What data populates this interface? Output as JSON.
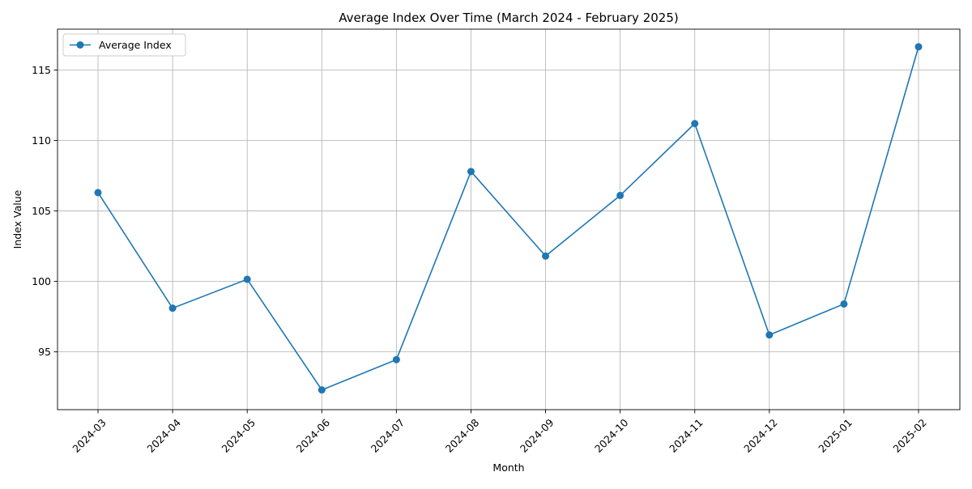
{
  "chart_data": {
    "type": "line",
    "title": "Average Index Over Time (March 2024 - February 2025)",
    "xlabel": "Month",
    "ylabel": "Index Value",
    "categories": [
      "2024-03",
      "2024-04",
      "2024-05",
      "2024-06",
      "2024-07",
      "2024-08",
      "2024-09",
      "2024-10",
      "2024-11",
      "2024-12",
      "2025-01",
      "2025-02"
    ],
    "series": [
      {
        "name": "Average Index",
        "values": [
          106.3,
          98.1,
          100.15,
          92.3,
          94.45,
          107.8,
          101.8,
          106.1,
          111.2,
          96.2,
          98.4,
          116.65
        ],
        "color": "#1f77b4",
        "marker": "circle"
      }
    ],
    "ylim": [
      90.9,
      117.9
    ],
    "yticks": [
      95,
      100,
      105,
      110,
      115
    ],
    "grid": true,
    "legend": "upper-left",
    "x_tick_rotation": 45
  }
}
